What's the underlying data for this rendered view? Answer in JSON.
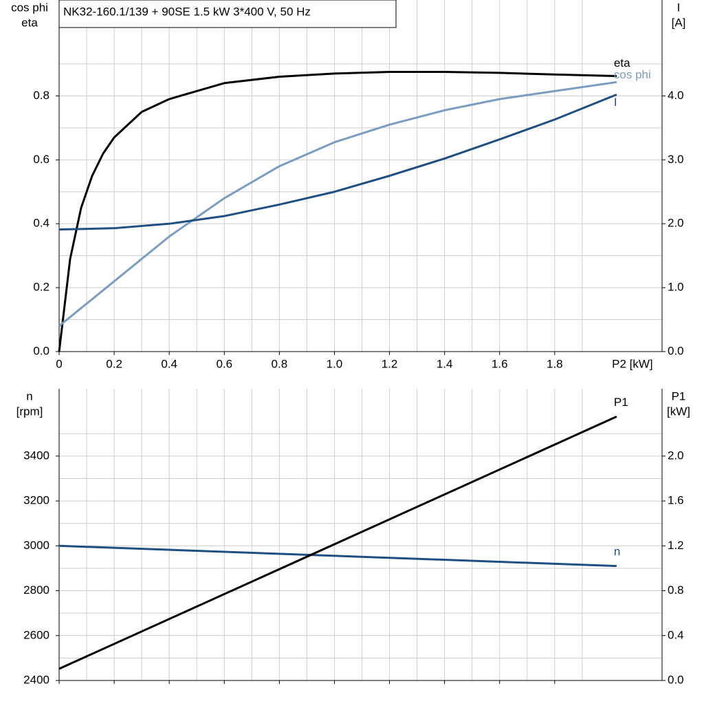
{
  "chart_data": [
    {
      "type": "line",
      "title": "NK32-160.1/139 + 90SE   1.5 kW   3*400 V, 50 Hz",
      "y_label": [
        "cos phi",
        "eta"
      ],
      "y2_label": [
        "I",
        "[A]"
      ],
      "x_label": "P2 [kW]",
      "xlim": [
        0,
        2.19
      ],
      "xticks": [
        0,
        0.2,
        0.4,
        0.6,
        0.8,
        {
          "value": 1.0,
          "label": "1.0"
        },
        1.2,
        1.4,
        1.6,
        1.8
      ],
      "ylim": [
        0,
        1.1
      ],
      "yticks": [
        {
          "value": 0,
          "label": "0.0"
        },
        0.2,
        0.4,
        0.6,
        0.8
      ],
      "y2lim": [
        0,
        5.5
      ],
      "y2ticks": [
        {
          "value": 0,
          "label": "0.0"
        },
        {
          "value": 1,
          "label": "1.0"
        },
        {
          "value": 2,
          "label": "2.0"
        },
        {
          "value": 3,
          "label": "3.0"
        },
        {
          "value": 4,
          "label": "4.0"
        }
      ],
      "grid": true,
      "xtick_labels": true,
      "series": [
        {
          "name": "eta",
          "color": "#000000",
          "x": [
            0,
            0.04,
            0.08,
            0.12,
            0.16,
            0.2,
            0.3,
            0.4,
            0.6,
            0.8,
            1.0,
            1.2,
            1.4,
            1.6,
            1.8,
            2.025
          ],
          "values": [
            0,
            0.29,
            0.45,
            0.55,
            0.62,
            0.67,
            0.75,
            0.79,
            0.84,
            0.86,
            0.87,
            0.875,
            0.875,
            0.872,
            0.867,
            0.862
          ]
        },
        {
          "name": "cos phi",
          "color": "#7a9cbf",
          "x": [
            0,
            0.2,
            0.4,
            0.6,
            0.8,
            1.0,
            1.2,
            1.4,
            1.6,
            1.8,
            2.025
          ],
          "values": [
            0.08,
            0.22,
            0.36,
            0.48,
            0.58,
            0.655,
            0.71,
            0.755,
            0.79,
            0.815,
            0.843
          ]
        },
        {
          "name": "I",
          "color": "#1f4e80",
          "axis": "y2",
          "x": [
            0,
            0.2,
            0.4,
            0.6,
            0.8,
            1.0,
            1.2,
            1.4,
            1.6,
            1.8,
            2.025
          ],
          "values": [
            1.91,
            1.93,
            2.0,
            2.12,
            2.3,
            2.5,
            2.75,
            3.02,
            3.32,
            3.63,
            4.02
          ]
        }
      ]
    },
    {
      "type": "line",
      "y_label": [
        "n",
        "[rpm]"
      ],
      "y2_label": [
        "P1",
        "[kW]"
      ],
      "xlim": [
        0,
        2.19
      ],
      "xticks": [
        0,
        0.2,
        0.4,
        0.6,
        0.8,
        1.0,
        1.2,
        1.4,
        1.6,
        1.8
      ],
      "ylim": [
        2400,
        3700
      ],
      "yticks": [
        2400,
        2600,
        2800,
        3000,
        3200,
        3400
      ],
      "y2lim": [
        0,
        2.6
      ],
      "y2ticks": [
        {
          "value": 0,
          "label": "0.0"
        },
        0.4,
        0.8,
        1.2,
        1.6,
        {
          "value": 2,
          "label": "2.0"
        }
      ],
      "grid": true,
      "xtick_labels": false,
      "series": [
        {
          "name": "n",
          "color": "#1f4e80",
          "x": [
            0,
            2.025
          ],
          "values": [
            3000,
            2910
          ]
        },
        {
          "name": "P1",
          "color": "#000000",
          "axis": "y2",
          "x": [
            0,
            2.025
          ],
          "values": [
            0.104,
            2.352
          ]
        }
      ]
    }
  ]
}
